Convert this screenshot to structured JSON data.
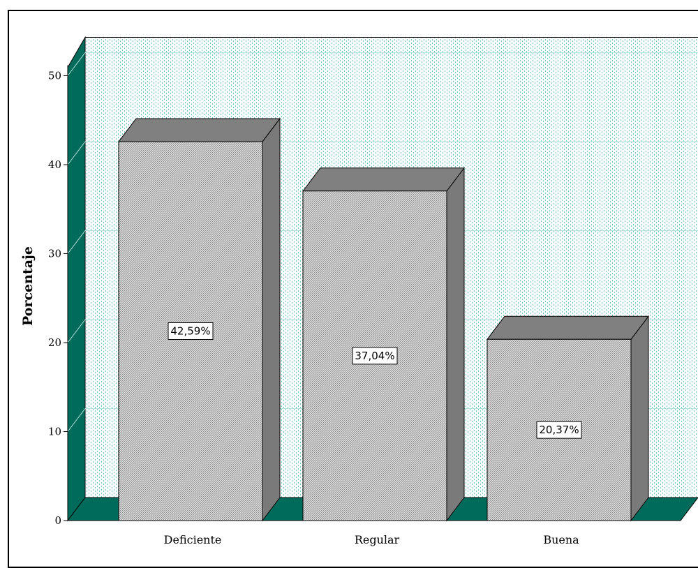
{
  "chart_data": {
    "type": "bar",
    "style": "3d",
    "categories": [
      "Deficiente",
      "Regular",
      "Buena"
    ],
    "values": [
      42.59,
      37.04,
      20.37
    ],
    "data_labels": [
      "42,59%",
      "37,04%",
      "20,37%"
    ],
    "title": "",
    "xlabel": "",
    "ylabel": "Porcentaje",
    "ylim": [
      0,
      50
    ],
    "yticks": [
      "0",
      "10",
      "20",
      "30",
      "40",
      "50"
    ],
    "grid": true,
    "colors": {
      "bar_front": "#c8c8c8",
      "bar_side": "#7a7a7a",
      "bar_top": "#808080",
      "wall_side": "#006b5a",
      "wall_floor": "#006b5a",
      "back_wall_dots": "#6fc9bf"
    }
  }
}
